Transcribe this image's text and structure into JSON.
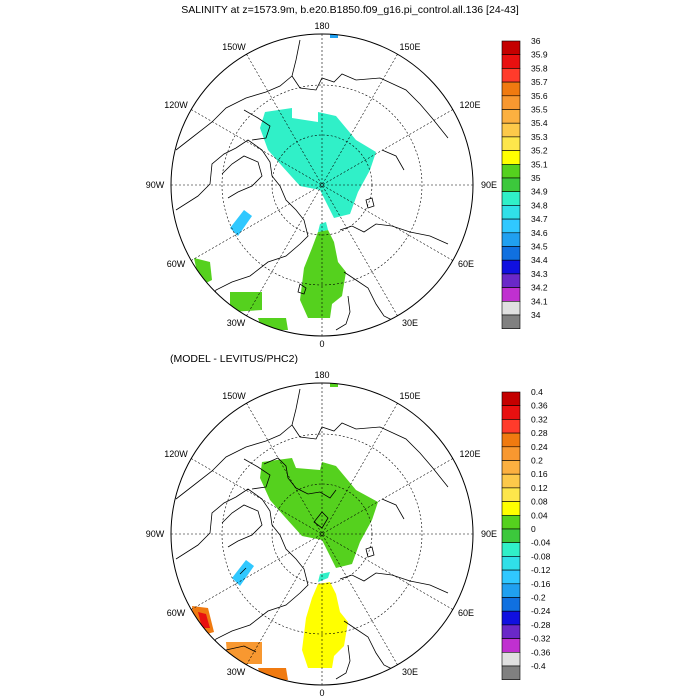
{
  "panel_top": {
    "title": "SALINITY at z=1573.9m, b.e20.B1850.f09_g16.pi_control.all.136 [24-43]",
    "colorbar": {
      "levels": [
        "36",
        "35.9",
        "35.8",
        "35.7",
        "35.6",
        "35.5",
        "35.4",
        "35.3",
        "35.2",
        "35.1",
        "35",
        "34.9",
        "34.8",
        "34.7",
        "34.6",
        "34.5",
        "34.4",
        "34.3",
        "34.2",
        "34.1",
        "34"
      ],
      "colors": [
        "#c40000",
        "#e81010",
        "#ff3b2b",
        "#f07a10",
        "#f89830",
        "#fcb040",
        "#fdc94a",
        "#fde64b",
        "#ffff00",
        "#55d11e",
        "#3cc83c",
        "#30f0c8",
        "#30e0e8",
        "#30c8ff",
        "#20a0f0",
        "#1070e0",
        "#1010e0",
        "#6a28c8",
        "#c030d0",
        "#e0e0e0",
        "#808080"
      ]
    }
  },
  "panel_bottom": {
    "title": "(MODEL - LEVITUS/PHC2)",
    "colorbar": {
      "levels": [
        "0.4",
        "0.36",
        "0.32",
        "0.28",
        "0.24",
        "0.2",
        "0.16",
        "0.12",
        "0.08",
        "0.04",
        "0",
        "-0.04",
        "-0.08",
        "-0.12",
        "-0.16",
        "-0.2",
        "-0.24",
        "-0.28",
        "-0.32",
        "-0.36",
        "-0.4"
      ],
      "colors": [
        "#c40000",
        "#e81010",
        "#ff3b2b",
        "#f07a10",
        "#f89830",
        "#fcb040",
        "#fdc94a",
        "#fde64b",
        "#ffff00",
        "#55d11e",
        "#3cc83c",
        "#30f0c8",
        "#30e0e8",
        "#30c8ff",
        "#20a0f0",
        "#1070e0",
        "#1010e0",
        "#6a28c8",
        "#c030d0",
        "#e0e0e0",
        "#808080"
      ]
    }
  },
  "longitude_labels": {
    "lon180": "180",
    "lon150W": "150W",
    "lon150E": "150E",
    "lon120W": "120W",
    "lon120E": "120E",
    "lon90W": "90W",
    "lon90E": "90E",
    "lon60W": "60W",
    "lon60E": "60E",
    "lon30W": "30W",
    "lon30E": "30E",
    "lon0": "0"
  },
  "colors": {
    "land_outline": "#000000",
    "grid": "#000000",
    "background": "#ffffff"
  }
}
